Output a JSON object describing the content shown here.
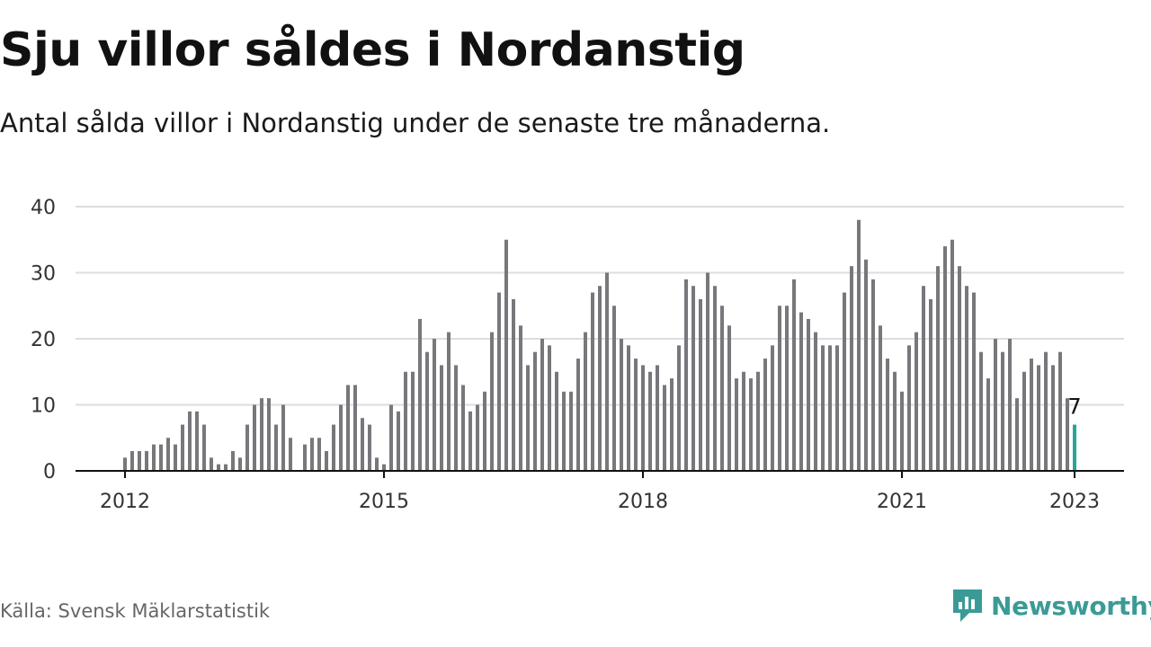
{
  "header": {
    "title": "Sju villor såldes i Nordanstig",
    "subtitle": "Antal sålda villor i Nordanstig under de senaste tre månaderna."
  },
  "footer": {
    "source": "Källa: Svensk Mäklarstatistik",
    "brand": "Newsworthy",
    "brand_color": "#3a9b96"
  },
  "chart_data": {
    "type": "bar",
    "x_start": "2012-01",
    "x_step": "month",
    "values": [
      2,
      3,
      3,
      3,
      4,
      4,
      5,
      4,
      7,
      9,
      9,
      7,
      2,
      1,
      1,
      3,
      2,
      7,
      10,
      11,
      11,
      7,
      10,
      5,
      0,
      4,
      5,
      5,
      3,
      7,
      10,
      13,
      13,
      8,
      7,
      2,
      1,
      10,
      9,
      15,
      15,
      23,
      18,
      20,
      16,
      21,
      16,
      13,
      9,
      10,
      12,
      21,
      27,
      35,
      26,
      22,
      16,
      18,
      20,
      19,
      15,
      12,
      12,
      17,
      21,
      27,
      28,
      30,
      25,
      20,
      19,
      17,
      16,
      15,
      16,
      13,
      14,
      19,
      29,
      28,
      26,
      30,
      28,
      25,
      22,
      14,
      15,
      14,
      15,
      17,
      19,
      25,
      25,
      29,
      24,
      23,
      21,
      19,
      19,
      19,
      27,
      31,
      38,
      32,
      29,
      22,
      17,
      15,
      12,
      19,
      21,
      28,
      26,
      31,
      34,
      35,
      31,
      28,
      27,
      18,
      14,
      20,
      18,
      20,
      11,
      15,
      17,
      16,
      18,
      16,
      18,
      11,
      7
    ],
    "xticks": [
      "2012",
      "2015",
      "2018",
      "2021",
      "2023"
    ],
    "yticks": [
      "0",
      "10",
      "20",
      "30",
      "40"
    ],
    "ylim": [
      0,
      40
    ],
    "highlight_label": "7",
    "bar_color": "#77777c",
    "highlight_color": "#26a69a",
    "grid": true
  }
}
